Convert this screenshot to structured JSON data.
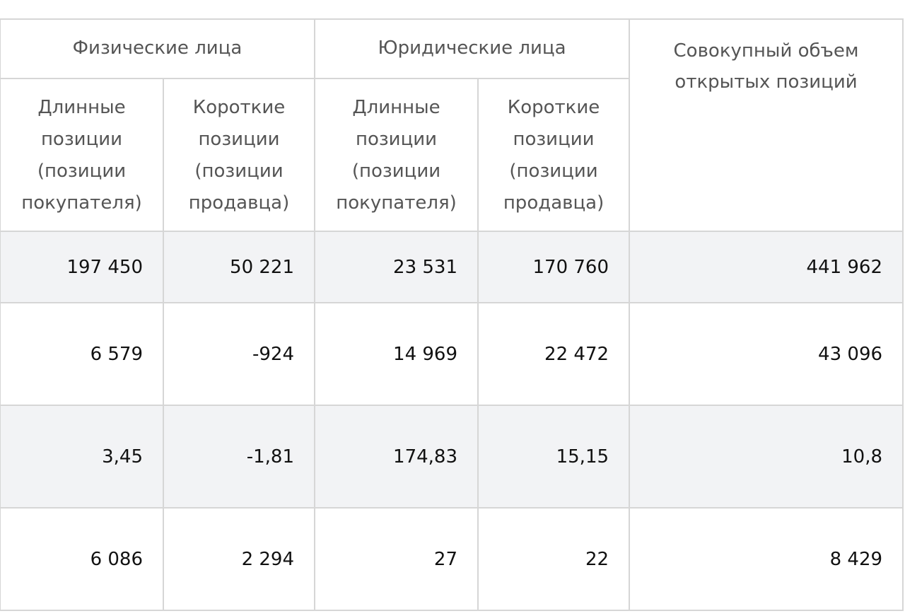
{
  "table": {
    "header_groups": [
      "Физические лица",
      "Юридические лица",
      "Совокупный объем открытых позиций"
    ],
    "subheaders": [
      "Длинные позиции (позиции покупателя)",
      "Короткие позиции (позиции продавца)",
      "Длинные позиции (позиции покупателя)",
      "Короткие позиции (позиции продавца)"
    ],
    "rows": [
      [
        "197 450",
        "50 221",
        "23 531",
        "170 760",
        "441 962"
      ],
      [
        "6 579",
        "-924",
        "14 969",
        "22 472",
        "43 096"
      ],
      [
        "3,45",
        "-1,81",
        "174,83",
        "15,15",
        "10,8"
      ],
      [
        "6 086",
        "2 294",
        "27",
        "22",
        "8 429"
      ]
    ]
  }
}
